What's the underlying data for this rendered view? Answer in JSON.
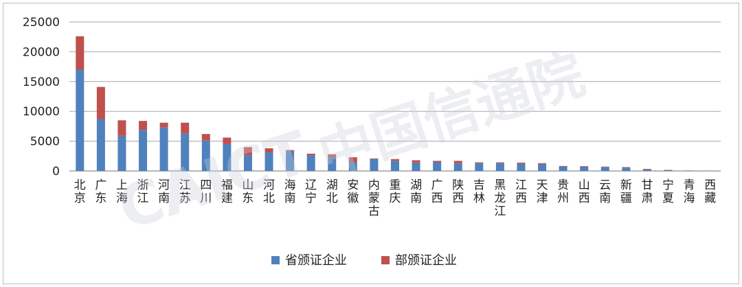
{
  "chart_data": {
    "type": "bar",
    "stacked": true,
    "categories": [
      "北京",
      "广东",
      "上海",
      "浙江",
      "河南",
      "江苏",
      "四川",
      "福建",
      "山东",
      "河北",
      "海南",
      "辽宁",
      "湖北",
      "安徽",
      "内蒙古",
      "重庆",
      "湖南",
      "广西",
      "陕西",
      "吉林",
      "黑龙江",
      "江西",
      "天津",
      "贵州",
      "山西",
      "云南",
      "新疆",
      "甘肃",
      "宁夏",
      "青海",
      "西藏"
    ],
    "series": [
      {
        "name": "省颁证企业",
        "color": "#4f81bd",
        "values": [
          17000,
          8700,
          5900,
          6900,
          7300,
          6300,
          5100,
          4500,
          2600,
          3100,
          3300,
          2600,
          2300,
          1500,
          2000,
          1700,
          1400,
          1500,
          1300,
          1300,
          1300,
          1200,
          1100,
          750,
          700,
          650,
          550,
          250,
          120,
          40,
          20
        ]
      },
      {
        "name": "部颁证企业",
        "color": "#c0504d",
        "values": [
          5600,
          5400,
          2600,
          1500,
          800,
          1800,
          1100,
          1100,
          1400,
          700,
          200,
          300,
          500,
          800,
          100,
          300,
          400,
          200,
          400,
          150,
          150,
          200,
          200,
          80,
          100,
          80,
          100,
          100,
          60,
          30,
          10
        ]
      }
    ],
    "ylim": [
      0,
      25000
    ],
    "yticks": [
      0,
      5000,
      10000,
      15000,
      20000,
      25000
    ],
    "grid": true,
    "legend": "bottom"
  },
  "watermark": {
    "logo_text": "CAICT",
    "cn_text": "中国信通院"
  }
}
